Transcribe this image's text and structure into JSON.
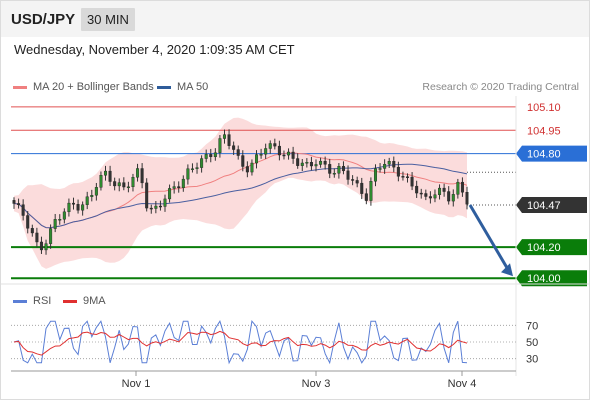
{
  "header": {
    "symbol": "USD/JPY",
    "timeframe": "30 MIN"
  },
  "datetime": "Wednesday, November 4, 2020 1:09:35 AM CET",
  "legend": {
    "ma20": {
      "label": "MA 20 + Bollinger Bands",
      "color": "#f08080"
    },
    "ma50": {
      "label": "MA 50",
      "color": "#2e5c9a"
    },
    "rsi": {
      "label": "RSI",
      "color": "#5b7fd6"
    },
    "ma9": {
      "label": "9MA",
      "color": "#e03030"
    }
  },
  "copyright": "Research © 2020 Trading Central",
  "chart_data": [
    {
      "type": "candlestick",
      "ylim": [
        103.95,
        105.17
      ],
      "y_axis_labels": [
        "105.10",
        "104.95",
        "104.80",
        "104.47",
        "104.20",
        "104.00"
      ],
      "levels": [
        {
          "label": "105.10",
          "value": 105.1,
          "kind": "resistance",
          "color": "#e05050"
        },
        {
          "label": "104.95",
          "value": 104.95,
          "kind": "resistance",
          "color": "#e05050"
        },
        {
          "label": "104.80",
          "value": 104.8,
          "kind": "pivot",
          "color": "#2a6fd6"
        },
        {
          "label": "104.47",
          "value": 104.47,
          "kind": "last_price",
          "color": "#333333"
        },
        {
          "label": "104.20",
          "value": 104.2,
          "kind": "support",
          "color": "#0a7d0a"
        },
        {
          "label": "104.00",
          "value": 104.0,
          "kind": "support",
          "color": "#0a7d0a"
        }
      ],
      "x_ticks": [
        "Nov 1",
        "Nov 3",
        "Nov 4"
      ],
      "forecast_arrow": {
        "from": 104.47,
        "to": 104.0,
        "direction": "down"
      },
      "ohlc_anchors": [
        104.48,
        104.42,
        104.3,
        104.18,
        104.25,
        104.38,
        104.43,
        104.48,
        104.45,
        104.52,
        104.62,
        104.68,
        104.6,
        104.58,
        104.63,
        104.7,
        104.42,
        104.45,
        104.52,
        104.58,
        104.62,
        104.7,
        104.74,
        104.78,
        104.82,
        104.92,
        104.85,
        104.73,
        104.7,
        104.78,
        104.85,
        104.84,
        104.8,
        104.78,
        104.74,
        104.72,
        104.75,
        104.72,
        104.68,
        104.7,
        104.65,
        104.58,
        104.52,
        104.68,
        104.75,
        104.72,
        104.67,
        104.62,
        104.57,
        104.5,
        104.55,
        104.56,
        104.51,
        104.6,
        104.5
      ]
    },
    {
      "type": "line",
      "ylim": [
        20,
        80
      ],
      "y_axis_labels": [
        "70",
        "50",
        "30"
      ],
      "reference_lines": [
        70,
        50,
        30
      ],
      "series": [
        {
          "name": "RSI",
          "color": "#5b7fd6"
        },
        {
          "name": "9MA",
          "color": "#e03030"
        }
      ]
    }
  ]
}
